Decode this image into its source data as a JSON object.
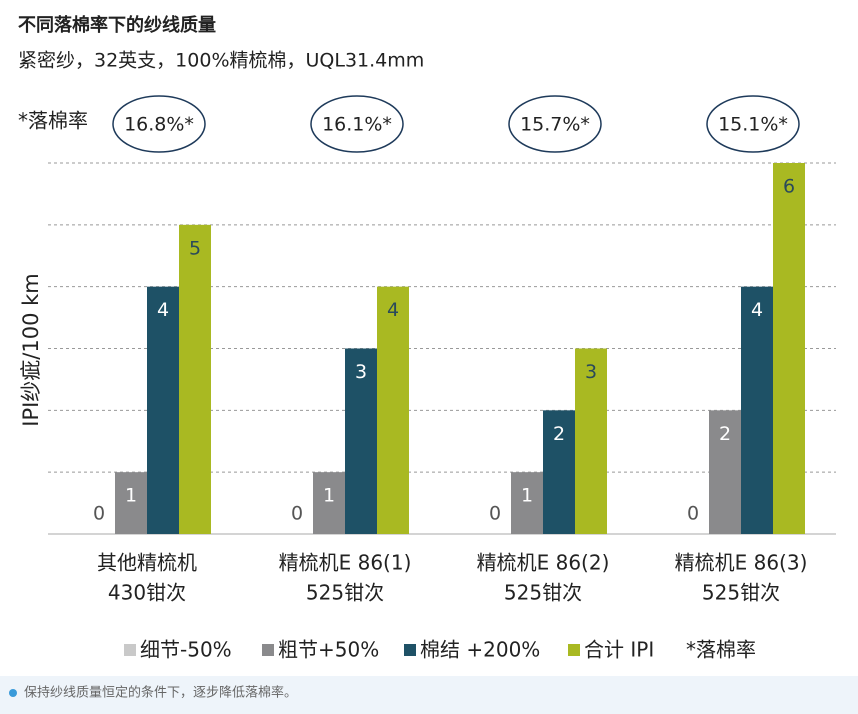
{
  "chart_data": {
    "type": "bar",
    "title": "不同落棉率下的纱线质量",
    "subtitle": "紧密纱，32英支，100%精梳棉，UQL31.4mm",
    "y_label": "IPI纱疵/100 km",
    "categories": [
      [
        "其他精梳机",
        "430钳次"
      ],
      [
        "精梳机E 86(1)",
        "525钳次"
      ],
      [
        "精梳机E 86(2)",
        "525钳次"
      ],
      [
        "精梳机E 86(3)",
        "525钳次"
      ]
    ],
    "series": [
      {
        "name": "细节-50%",
        "color": "#c9c9c9",
        "values": [
          0,
          0,
          0,
          0
        ]
      },
      {
        "name": "粗节+50%",
        "color": "#8a8a8c",
        "values": [
          1,
          1,
          1,
          2
        ]
      },
      {
        "name": "棉结 +200%",
        "color": "#1e5166",
        "values": [
          4,
          3,
          2,
          4
        ]
      },
      {
        "name": "合计 IPI",
        "color": "#a9b922",
        "values": [
          5,
          4,
          3,
          6
        ]
      }
    ],
    "ylim": [
      0,
      6
    ],
    "yticks": [
      1,
      2,
      3,
      4,
      5,
      6
    ],
    "grid": true,
    "waste_label": "*落棉率",
    "waste_rates": [
      "16.8%*",
      "16.1%*",
      "15.7%*",
      "15.1%*"
    ],
    "caption": "保持纱线质量恒定的条件下，逐步降低落棉率。"
  }
}
